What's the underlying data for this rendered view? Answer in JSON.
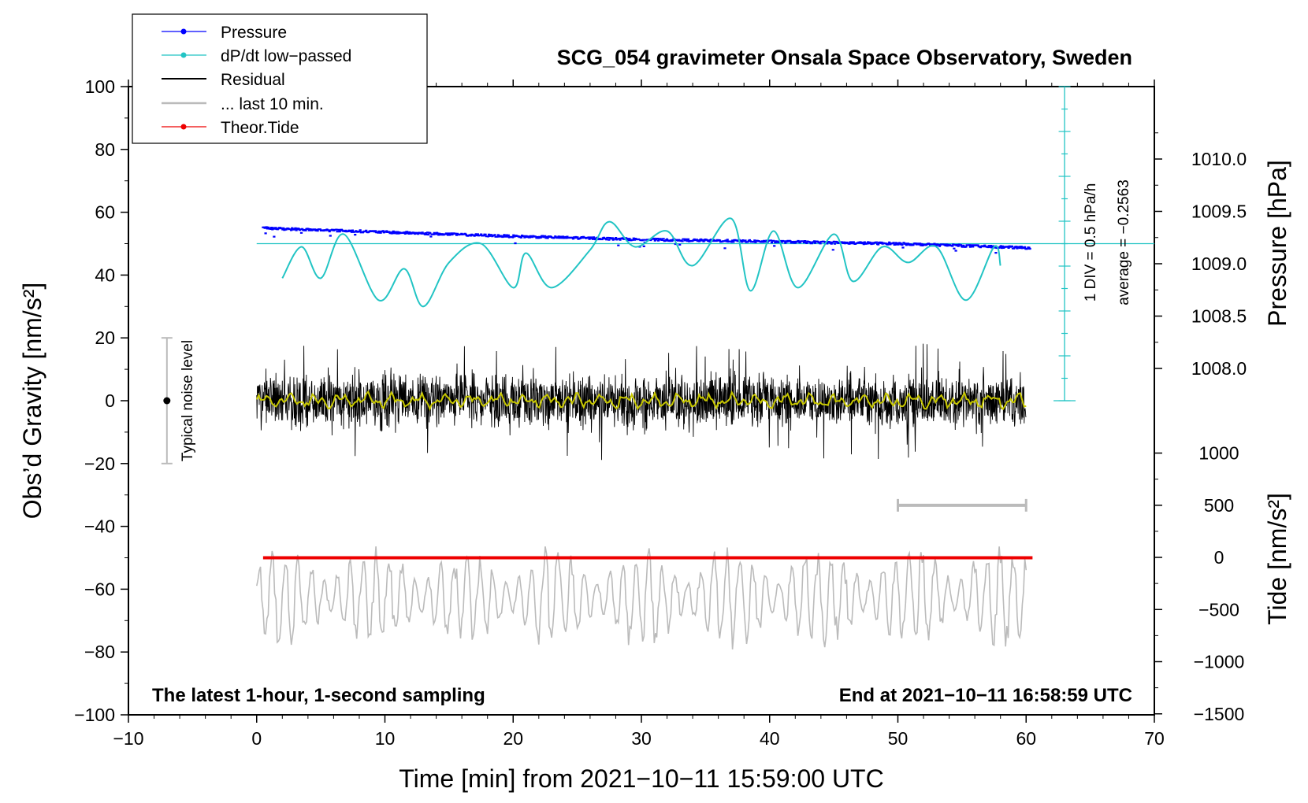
{
  "chart_data": {
    "type": "line",
    "title": "SCG_054 gravimeter Onsala Space Observatory, Sweden",
    "xlabel": "Time [min] from 2021−10−11 15:59:00 UTC",
    "ylabel_left": "Obs’d Gravity [nm/s²]",
    "ylabel_right_pressure": "Pressure [hPa]",
    "ylabel_right_tide": "Tide [nm/s²]",
    "xlim": [
      -10,
      70
    ],
    "ylim": [
      -100,
      100
    ],
    "x_ticks": [
      "−10",
      "0",
      "10",
      "20",
      "30",
      "40",
      "50",
      "60",
      "70"
    ],
    "y_ticks": [
      "100",
      "80",
      "60",
      "40",
      "20",
      "0",
      "−20",
      "−40",
      "−60",
      "−80",
      "−100"
    ],
    "pressure_ticks": [
      "1010.0",
      "1009.5",
      "1009.0",
      "1008.5",
      "1008.0"
    ],
    "tide_ticks": [
      "1000",
      "500",
      "0",
      "−500",
      "−1000",
      "−1500"
    ],
    "legend": [
      {
        "label": "Pressure",
        "color": "#0000ff"
      },
      {
        "label": "dP/dt low−passed",
        "color": "#22c4c4"
      },
      {
        "label": "Residual",
        "color": "#000000"
      },
      {
        "label": "... last 10 min.",
        "color": "#bbbbbb"
      },
      {
        "label": "Theor.Tide",
        "color": "#ee0000"
      }
    ],
    "noise_label": "Typical noise level",
    "noise_range": [
      -20,
      20
    ],
    "dpdt_scale_label": "1 DIV = 0.5 hPa/h",
    "dpdt_average_label": "average = −0.2563",
    "note_left": "The latest 1-hour, 1-second sampling",
    "note_right": "End at 2021−10−11 16:58:59 UTC",
    "last10_range_min": [
      50,
      60
    ],
    "series": [
      {
        "name": "Pressure",
        "unit": "hPa",
        "x": [
          0,
          10,
          20,
          30,
          40,
          50,
          60
        ],
        "values": [
          1009.35,
          1009.31,
          1009.27,
          1009.24,
          1009.22,
          1009.2,
          1009.16
        ]
      },
      {
        "name": "dP/dt low-passed",
        "x": [
          2,
          3.5,
          5,
          6.8,
          9.5,
          11.5,
          13,
          15,
          17.5,
          20,
          21,
          23,
          26,
          27.5,
          29.5,
          32,
          34,
          37,
          38.5,
          40.3,
          42.2,
          45,
          46.5,
          48.8,
          50.8,
          53,
          55.3,
          57.5,
          58
        ],
        "values": [
          39,
          49,
          39,
          53,
          32,
          42,
          30,
          44,
          50,
          36,
          47,
          36,
          48,
          57,
          49,
          54,
          43,
          58,
          35,
          54,
          36,
          53,
          38,
          49,
          44,
          49,
          32,
          49,
          43
        ]
      },
      {
        "name": "Residual",
        "x": [
          0,
          60
        ],
        "envelope": [
          -20,
          20
        ],
        "smoothed_mean": 0
      },
      {
        "name": "Theor.Tide",
        "x": [
          0,
          60
        ],
        "values": [
          -50,
          -50
        ]
      },
      {
        "name": "last 10 min. (gray)",
        "x": [
          0,
          60
        ],
        "values_range": [
          -80,
          -45
        ]
      }
    ]
  }
}
